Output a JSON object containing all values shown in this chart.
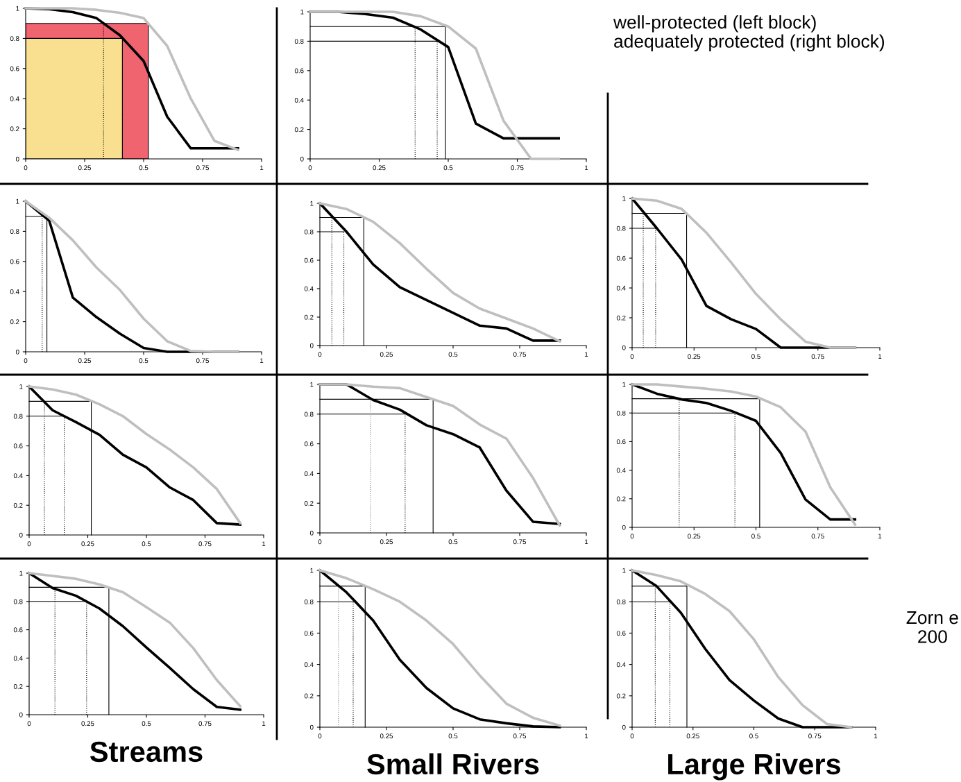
{
  "chart_data": [
    {
      "type": "line",
      "x": [
        0,
        0.1,
        0.2,
        0.3,
        0.4,
        0.5,
        0.6,
        0.7,
        0.8,
        0.9
      ],
      "xlim": [
        0,
        1
      ],
      "xticks": [
        0,
        0.25,
        0.5,
        0.75,
        1
      ],
      "ylim": [
        0,
        1
      ],
      "yticks": [
        0,
        0.2,
        0.4,
        0.6,
        0.8,
        1
      ],
      "grid": false,
      "series": [
        {
          "type": "area",
          "color": "#f06470",
          "line_style": "solid",
          "x": [
            0,
            0.52
          ],
          "values": [
            0.9,
            0.9
          ]
        },
        {
          "type": "area",
          "color": "#f8e090",
          "line_style": "solid",
          "x": [
            0,
            0.41
          ],
          "values": [
            0.8,
            0.8
          ]
        },
        {
          "color": "#000000",
          "values": [
            1,
            0.995,
            0.975,
            0.935,
            0.82,
            0.65,
            0.28,
            0.07,
            0.07,
            0.07
          ]
        },
        {
          "color": "#bfbfbf",
          "values": [
            1,
            1,
            1,
            0.99,
            0.97,
            0.935,
            0.75,
            0.4,
            0.12,
            0.06
          ]
        },
        {
          "color": "#000000",
          "line_style": "dotted",
          "x": [
            0.33,
            0.33
          ],
          "values": [
            0,
            0.9
          ]
        },
        {
          "color": "#000000",
          "line_style": "dotted",
          "x": [
            0.41,
            0.41
          ],
          "values": [
            0,
            0.8
          ]
        }
      ]
    },
    {
      "type": "line",
      "x": [
        0,
        0.1,
        0.2,
        0.3,
        0.4,
        0.5,
        0.6,
        0.7,
        0.8,
        0.9
      ],
      "xlim": [
        0,
        1
      ],
      "xticks": [
        0,
        0.25,
        0.5,
        0.75,
        1
      ],
      "ylim": [
        0,
        1
      ],
      "yticks": [
        0,
        0.2,
        0.4,
        0.6,
        0.8,
        1
      ],
      "grid": false,
      "annotations": [
        "well-protected (left block)\nadequately protected (right block)"
      ],
      "series": [
        {
          "color": "#000000",
          "values": [
            1,
            1,
            0.985,
            0.96,
            0.88,
            0.76,
            0.24,
            0.14,
            0.14,
            0.14
          ]
        },
        {
          "color": "#bfbfbf",
          "values": [
            1,
            1,
            1,
            1,
            0.97,
            0.9,
            0.75,
            0.26,
            0,
            0
          ]
        },
        {
          "color": "#000000",
          "line_style": "solid",
          "x": [
            0,
            0.49,
            0.49
          ],
          "values": [
            0.9,
            0.9,
            0
          ]
        },
        {
          "color": "#000000",
          "line_style": "solid",
          "x": [
            0,
            0.46
          ],
          "values": [
            0.8,
            0.8
          ]
        },
        {
          "color": "#000000",
          "line_style": "dotted",
          "x": [
            0.38,
            0.38
          ],
          "values": [
            0,
            0.9
          ]
        },
        {
          "color": "#000000",
          "line_style": "dotted",
          "x": [
            0.46,
            0.46
          ],
          "values": [
            0,
            0.8
          ]
        }
      ]
    },
    {
      "type": "line",
      "x": [
        0,
        0.1,
        0.2,
        0.3,
        0.4,
        0.5,
        0.6,
        0.7,
        0.8,
        0.9
      ],
      "xlim": [
        0,
        1
      ],
      "xticks": [
        0,
        0.25,
        0.5,
        0.75,
        1
      ],
      "ylim": [
        0,
        1
      ],
      "yticks": [
        0,
        0.2,
        0.4,
        0.6,
        0.8,
        1
      ],
      "grid": false,
      "series": [
        {
          "color": "#000000",
          "values": [
            1,
            0.87,
            0.36,
            0.23,
            0.12,
            0.025,
            0,
            0,
            0,
            0
          ]
        },
        {
          "color": "#bfbfbf",
          "values": [
            1,
            0.89,
            0.74,
            0.56,
            0.41,
            0.22,
            0.07,
            0.005,
            0,
            0
          ]
        },
        {
          "color": "#000000",
          "line_style": "solid",
          "x": [
            0,
            0.09,
            0.09
          ],
          "values": [
            0.9,
            0.9,
            0
          ]
        },
        {
          "color": "#000000",
          "line_style": "dotted",
          "x": [
            0.07,
            0.07
          ],
          "values": [
            0,
            0.9
          ]
        }
      ]
    },
    {
      "type": "line",
      "x": [
        0,
        0.1,
        0.2,
        0.3,
        0.4,
        0.5,
        0.6,
        0.7,
        0.8,
        0.9
      ],
      "xlim": [
        0,
        1
      ],
      "xticks": [
        0,
        0.25,
        0.5,
        0.75,
        1
      ],
      "ylim": [
        0,
        1
      ],
      "yticks": [
        0,
        0.2,
        0.4,
        0.6,
        0.8,
        1
      ],
      "grid": false,
      "series": [
        {
          "color": "#000000",
          "values": [
            1,
            0.8,
            0.57,
            0.41,
            0.32,
            0.23,
            0.14,
            0.12,
            0.035,
            0.035
          ]
        },
        {
          "color": "#bfbfbf",
          "values": [
            1,
            0.96,
            0.87,
            0.72,
            0.54,
            0.37,
            0.26,
            0.19,
            0.12,
            0.03
          ]
        },
        {
          "color": "#000000",
          "line_style": "solid",
          "x": [
            0,
            0.165,
            0.165
          ],
          "values": [
            0.9,
            0.9,
            0
          ]
        },
        {
          "color": "#000000",
          "line_style": "solid",
          "x": [
            0,
            0.09
          ],
          "values": [
            0.8,
            0.8
          ]
        },
        {
          "color": "#000000",
          "line_style": "dotted",
          "x": [
            0.045,
            0.045
          ],
          "values": [
            0,
            0.9
          ]
        },
        {
          "color": "#000000",
          "line_style": "dotted",
          "x": [
            0.09,
            0.09
          ],
          "values": [
            0,
            0.8
          ]
        }
      ]
    },
    {
      "type": "line",
      "x": [
        0,
        0.1,
        0.2,
        0.3,
        0.4,
        0.5,
        0.6,
        0.7,
        0.8,
        0.9
      ],
      "xlim": [
        0,
        1
      ],
      "xticks": [
        0,
        0.25,
        0.5,
        0.75,
        1
      ],
      "ylim": [
        0,
        1
      ],
      "yticks": [
        0,
        0.2,
        0.4,
        0.6,
        0.8,
        1
      ],
      "grid": false,
      "series": [
        {
          "color": "#000000",
          "values": [
            1,
            0.8,
            0.59,
            0.28,
            0.19,
            0.125,
            0,
            0,
            0,
            0
          ]
        },
        {
          "color": "#bfbfbf",
          "values": [
            1,
            0.985,
            0.93,
            0.77,
            0.57,
            0.36,
            0.19,
            0.04,
            0,
            0
          ]
        },
        {
          "color": "#000000",
          "line_style": "solid",
          "x": [
            0,
            0.22,
            0.22
          ],
          "values": [
            0.9,
            0.9,
            0
          ]
        },
        {
          "color": "#000000",
          "line_style": "solid",
          "x": [
            0,
            0.095
          ],
          "values": [
            0.8,
            0.8
          ]
        },
        {
          "color": "#000000",
          "line_style": "dotted",
          "x": [
            0.045,
            0.045
          ],
          "values": [
            0,
            0.9
          ]
        },
        {
          "color": "#000000",
          "line_style": "dotted",
          "x": [
            0.095,
            0.095
          ],
          "values": [
            0,
            0.8
          ]
        }
      ]
    },
    {
      "type": "line",
      "x": [
        0,
        0.1,
        0.2,
        0.3,
        0.4,
        0.5,
        0.6,
        0.7,
        0.8,
        0.9
      ],
      "xlim": [
        0,
        1
      ],
      "xticks": [
        0,
        0.25,
        0.5,
        0.75,
        1
      ],
      "ylim": [
        0,
        1
      ],
      "yticks": [
        0,
        0.2,
        0.4,
        0.6,
        0.8,
        1
      ],
      "grid": false,
      "series": [
        {
          "color": "#000000",
          "values": [
            1,
            0.84,
            0.76,
            0.675,
            0.54,
            0.455,
            0.32,
            0.235,
            0.08,
            0.07
          ]
        },
        {
          "color": "#bfbfbf",
          "values": [
            1,
            0.98,
            0.945,
            0.88,
            0.8,
            0.68,
            0.575,
            0.455,
            0.31,
            0.08
          ]
        },
        {
          "color": "#000000",
          "line_style": "solid",
          "x": [
            0,
            0.265,
            0.265
          ],
          "values": [
            0.9,
            0.9,
            0
          ]
        },
        {
          "color": "#000000",
          "line_style": "solid",
          "x": [
            0,
            0.15
          ],
          "values": [
            0.8,
            0.8
          ]
        },
        {
          "color": "#000000",
          "line_style": "dotted",
          "x": [
            0.065,
            0.065
          ],
          "values": [
            0,
            0.9
          ]
        },
        {
          "color": "#000000",
          "line_style": "dotted",
          "x": [
            0.15,
            0.15
          ],
          "values": [
            0,
            0.8
          ]
        }
      ]
    },
    {
      "type": "line",
      "x": [
        0,
        0.1,
        0.2,
        0.3,
        0.4,
        0.5,
        0.6,
        0.7,
        0.8,
        0.9
      ],
      "xlim": [
        0,
        1
      ],
      "xticks": [
        0,
        0.25,
        0.5,
        0.75,
        1
      ],
      "ylim": [
        0,
        1
      ],
      "yticks": [
        0,
        0.2,
        0.4,
        0.6,
        0.8,
        1
      ],
      "grid": false,
      "series": [
        {
          "color": "#000000",
          "values": [
            1,
            1,
            0.895,
            0.83,
            0.725,
            0.665,
            0.575,
            0.285,
            0.075,
            0.06
          ]
        },
        {
          "color": "#bfbfbf",
          "values": [
            1,
            1,
            0.985,
            0.975,
            0.915,
            0.855,
            0.73,
            0.635,
            0.37,
            0.05
          ]
        },
        {
          "color": "#000000",
          "line_style": "solid",
          "x": [
            0,
            0.425,
            0.425
          ],
          "values": [
            0.9,
            0.9,
            0
          ]
        },
        {
          "color": "#000000",
          "line_style": "solid",
          "x": [
            0,
            0.32
          ],
          "values": [
            0.8,
            0.8
          ]
        },
        {
          "color": "#808080",
          "line_style": "dotted",
          "x": [
            0.19,
            0.19
          ],
          "values": [
            0,
            0.9
          ]
        },
        {
          "color": "#000000",
          "line_style": "dotted",
          "x": [
            0.32,
            0.32
          ],
          "values": [
            0,
            0.8
          ]
        }
      ]
    },
    {
      "type": "line",
      "x": [
        0,
        0.1,
        0.2,
        0.3,
        0.4,
        0.5,
        0.6,
        0.7,
        0.8,
        0.9
      ],
      "xlim": [
        0,
        1
      ],
      "xticks": [
        0,
        0.25,
        0.5,
        0.75,
        1
      ],
      "ylim": [
        0,
        1
      ],
      "yticks": [
        0,
        0.2,
        0.4,
        0.6,
        0.8,
        1
      ],
      "grid": false,
      "series": [
        {
          "color": "#000000",
          "values": [
            1,
            0.935,
            0.895,
            0.87,
            0.815,
            0.745,
            0.52,
            0.195,
            0.055,
            0.055
          ]
        },
        {
          "color": "#bfbfbf",
          "values": [
            1,
            1,
            0.985,
            0.97,
            0.95,
            0.915,
            0.84,
            0.67,
            0.28,
            0.02
          ]
        },
        {
          "color": "#000000",
          "line_style": "solid",
          "x": [
            0,
            0.515,
            0.515
          ],
          "values": [
            0.9,
            0.9,
            0
          ]
        },
        {
          "color": "#000000",
          "line_style": "solid",
          "x": [
            0,
            0.415
          ],
          "values": [
            0.8,
            0.8
          ]
        },
        {
          "color": "#000000",
          "line_style": "dotted",
          "x": [
            0.19,
            0.19
          ],
          "values": [
            0,
            0.9
          ]
        },
        {
          "color": "#000000",
          "line_style": "dotted",
          "x": [
            0.415,
            0.415
          ],
          "values": [
            0,
            0.8
          ]
        }
      ]
    },
    {
      "type": "line",
      "x": [
        0,
        0.1,
        0.2,
        0.3,
        0.4,
        0.5,
        0.6,
        0.7,
        0.8,
        0.9
      ],
      "xlim": [
        0,
        1
      ],
      "xticks": [
        0,
        0.25,
        0.5,
        0.75,
        1
      ],
      "ylim": [
        0,
        1
      ],
      "yticks": [
        0,
        0.2,
        0.4,
        0.6,
        0.8,
        1
      ],
      "grid": false,
      "xlabel": "Streams",
      "series": [
        {
          "color": "#000000",
          "values": [
            1,
            0.895,
            0.84,
            0.75,
            0.625,
            0.475,
            0.33,
            0.18,
            0.055,
            0.035
          ]
        },
        {
          "color": "#bfbfbf",
          "values": [
            1,
            0.98,
            0.96,
            0.92,
            0.865,
            0.76,
            0.65,
            0.47,
            0.245,
            0.06
          ]
        },
        {
          "color": "#000000",
          "line_style": "solid",
          "x": [
            0,
            0.34,
            0.34
          ],
          "values": [
            0.9,
            0.9,
            0
          ]
        },
        {
          "color": "#000000",
          "line_style": "solid",
          "x": [
            0,
            0.245
          ],
          "values": [
            0.8,
            0.8
          ]
        },
        {
          "color": "#000000",
          "line_style": "dotted",
          "x": [
            0.11,
            0.11
          ],
          "values": [
            0,
            0.9
          ]
        },
        {
          "color": "#000000",
          "line_style": "dotted",
          "x": [
            0.245,
            0.245
          ],
          "values": [
            0,
            0.8
          ]
        }
      ]
    },
    {
      "type": "line",
      "x": [
        0,
        0.1,
        0.2,
        0.3,
        0.4,
        0.5,
        0.6,
        0.7,
        0.8,
        0.9
      ],
      "xlim": [
        0,
        1
      ],
      "xticks": [
        0,
        0.25,
        0.5,
        0.75,
        1
      ],
      "ylim": [
        0,
        1
      ],
      "yticks": [
        0,
        0.2,
        0.4,
        0.6,
        0.8,
        1
      ],
      "grid": false,
      "xlabel": "Small Rivers",
      "series": [
        {
          "color": "#000000",
          "values": [
            1,
            0.86,
            0.68,
            0.43,
            0.25,
            0.12,
            0.05,
            0.025,
            0.005,
            0
          ]
        },
        {
          "color": "#bfbfbf",
          "values": [
            1,
            0.95,
            0.88,
            0.8,
            0.68,
            0.53,
            0.33,
            0.15,
            0.06,
            0.01
          ]
        },
        {
          "color": "#000000",
          "line_style": "solid",
          "x": [
            0,
            0.17,
            0.17
          ],
          "values": [
            0.9,
            0.9,
            0
          ]
        },
        {
          "color": "#000000",
          "line_style": "solid",
          "x": [
            0,
            0.125
          ],
          "values": [
            0.8,
            0.8
          ]
        },
        {
          "color": "#808080",
          "line_style": "dotted",
          "x": [
            0.07,
            0.07
          ],
          "values": [
            0,
            0.9
          ]
        },
        {
          "color": "#000000",
          "line_style": "dotted",
          "x": [
            0.125,
            0.125
          ],
          "values": [
            0,
            0.8
          ]
        }
      ]
    },
    {
      "type": "line",
      "x": [
        0,
        0.1,
        0.2,
        0.3,
        0.4,
        0.5,
        0.6,
        0.7,
        0.8,
        0.9
      ],
      "xlim": [
        0,
        1
      ],
      "xticks": [
        0,
        0.25,
        0.5,
        0.75,
        1
      ],
      "ylim": [
        0,
        1
      ],
      "yticks": [
        0,
        0.2,
        0.4,
        0.6,
        0.8,
        1
      ],
      "grid": false,
      "xlabel": "Large Rivers",
      "annotations": [
        "Zorn e\n200"
      ],
      "series": [
        {
          "color": "#000000",
          "values": [
            1,
            0.9,
            0.73,
            0.5,
            0.3,
            0.17,
            0.055,
            0,
            0,
            0
          ]
        },
        {
          "color": "#bfbfbf",
          "values": [
            1,
            0.97,
            0.93,
            0.85,
            0.74,
            0.56,
            0.32,
            0.14,
            0.02,
            0
          ]
        },
        {
          "color": "#000000",
          "line_style": "solid",
          "x": [
            0,
            0.225,
            0.225
          ],
          "values": [
            0.9,
            0.9,
            0
          ]
        },
        {
          "color": "#000000",
          "line_style": "solid",
          "x": [
            0,
            0.155
          ],
          "values": [
            0.8,
            0.8
          ]
        },
        {
          "color": "#000000",
          "line_style": "dotted",
          "x": [
            0.095,
            0.095
          ],
          "values": [
            0,
            0.9
          ]
        },
        {
          "color": "#000000",
          "line_style": "dotted",
          "x": [
            0.155,
            0.155
          ],
          "values": [
            0,
            0.8
          ]
        }
      ]
    }
  ]
}
